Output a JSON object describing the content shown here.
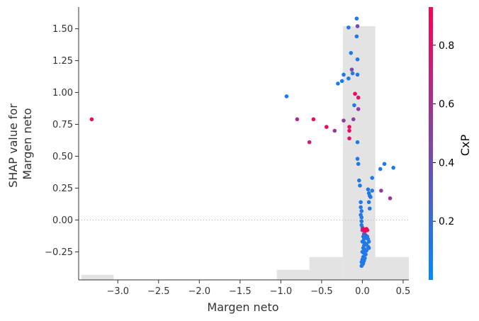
{
  "chart_data": {
    "type": "scatter",
    "xlabel": "Margen neto",
    "ylabel_lines": [
      "SHAP value for",
      "Margen neto"
    ],
    "xlim": [
      -3.48,
      0.57
    ],
    "ylim": [
      -0.47,
      1.67
    ],
    "x_ticks": [
      -3.0,
      -2.5,
      -2.0,
      -1.5,
      -1.0,
      -0.5,
      0.0,
      0.5
    ],
    "x_tick_labels": [
      "−3.0",
      "−2.5",
      "−2.0",
      "−1.5",
      "−1.0",
      "−0.5",
      "0.0",
      "0.5"
    ],
    "y_ticks": [
      -0.25,
      0.0,
      0.25,
      0.5,
      0.75,
      1.0,
      1.25,
      1.5
    ],
    "y_tick_labels": [
      "−0.25",
      "0.00",
      "0.25",
      "0.50",
      "0.75",
      "1.00",
      "1.25",
      "1.50"
    ],
    "zero_line": 0.0,
    "colorbar": {
      "label": "CxP",
      "range": [
        0.0,
        0.93
      ],
      "ticks": [
        0.2,
        0.4,
        0.6,
        0.8
      ],
      "tick_labels": [
        "0.2",
        "0.4",
        "0.6",
        "0.8"
      ],
      "colors": [
        "#008bfb",
        "#ff0052"
      ]
    },
    "histogram": {
      "y_range": [
        -0.47,
        1.52
      ],
      "bins": [
        {
          "x0": -3.45,
          "x1": -3.05,
          "count": 0.02
        },
        {
          "x0": -1.05,
          "x1": -0.65,
          "count": 0.04
        },
        {
          "x0": -0.65,
          "x1": -0.24,
          "count": 0.09
        },
        {
          "x0": -0.24,
          "x1": 0.16,
          "count": 1.0
        },
        {
          "x0": 0.16,
          "x1": 0.57,
          "count": 0.09
        }
      ]
    },
    "points": [
      {
        "x": -3.32,
        "y": 0.79,
        "c": 0.88
      },
      {
        "x": -0.93,
        "y": 0.97,
        "c": 0.1
      },
      {
        "x": -0.8,
        "y": 0.79,
        "c": 0.62
      },
      {
        "x": -0.6,
        "y": 0.79,
        "c": 0.86
      },
      {
        "x": -0.65,
        "y": 0.61,
        "c": 0.7
      },
      {
        "x": -0.44,
        "y": 0.73,
        "c": 0.85
      },
      {
        "x": -0.34,
        "y": 0.7,
        "c": 0.55
      },
      {
        "x": -0.3,
        "y": 1.07,
        "c": 0.12
      },
      {
        "x": -0.25,
        "y": 1.09,
        "c": 0.1
      },
      {
        "x": -0.23,
        "y": 1.14,
        "c": 0.12
      },
      {
        "x": -0.23,
        "y": 0.78,
        "c": 0.5
      },
      {
        "x": -0.17,
        "y": 1.11,
        "c": 0.12
      },
      {
        "x": -0.16,
        "y": 0.73,
        "c": 0.85
      },
      {
        "x": -0.16,
        "y": 0.7,
        "c": 0.82
      },
      {
        "x": -0.16,
        "y": 0.64,
        "c": 0.8
      },
      {
        "x": -0.17,
        "y": 1.51,
        "c": 0.12
      },
      {
        "x": -0.14,
        "y": 1.31,
        "c": 0.12
      },
      {
        "x": -0.13,
        "y": 1.18,
        "c": 0.45
      },
      {
        "x": -0.12,
        "y": 1.15,
        "c": 0.12
      },
      {
        "x": -0.11,
        "y": 0.79,
        "c": 0.5
      },
      {
        "x": -0.1,
        "y": 0.9,
        "c": 0.12
      },
      {
        "x": -0.09,
        "y": 0.99,
        "c": 0.88
      },
      {
        "x": -0.07,
        "y": 1.58,
        "c": 0.12
      },
      {
        "x": -0.06,
        "y": 1.52,
        "c": 0.45
      },
      {
        "x": -0.07,
        "y": 1.44,
        "c": 0.12
      },
      {
        "x": -0.06,
        "y": 1.26,
        "c": 0.12
      },
      {
        "x": -0.06,
        "y": 1.14,
        "c": 0.12
      },
      {
        "x": -0.05,
        "y": 0.96,
        "c": 0.8
      },
      {
        "x": -0.05,
        "y": 0.87,
        "c": 0.55
      },
      {
        "x": -0.06,
        "y": 0.61,
        "c": 0.12
      },
      {
        "x": -0.06,
        "y": 0.48,
        "c": 0.12
      },
      {
        "x": -0.05,
        "y": 0.44,
        "c": 0.12
      },
      {
        "x": -0.04,
        "y": 0.31,
        "c": 0.12
      },
      {
        "x": -0.03,
        "y": 0.27,
        "c": 0.12
      },
      {
        "x": -0.02,
        "y": 0.14,
        "c": 0.12
      },
      {
        "x": -0.02,
        "y": 0.1,
        "c": 0.12
      },
      {
        "x": -0.01,
        "y": 0.07,
        "c": 0.12
      },
      {
        "x": -0.02,
        "y": 0.04,
        "c": 0.12
      },
      {
        "x": -0.01,
        "y": 0.02,
        "c": 0.12
      },
      {
        "x": -0.01,
        "y": -0.01,
        "c": 0.12
      },
      {
        "x": -0.01,
        "y": -0.04,
        "c": 0.12
      },
      {
        "x": 0.0,
        "y": -0.06,
        "c": 0.12
      },
      {
        "x": 0.0,
        "y": -0.08,
        "c": 0.5
      },
      {
        "x": 0.01,
        "y": -0.07,
        "c": 0.88
      },
      {
        "x": 0.02,
        "y": -0.08,
        "c": 0.9
      },
      {
        "x": 0.03,
        "y": -0.09,
        "c": 0.92
      },
      {
        "x": 0.04,
        "y": -0.08,
        "c": 0.9
      },
      {
        "x": 0.05,
        "y": -0.07,
        "c": 0.88
      },
      {
        "x": 0.06,
        "y": -0.08,
        "c": 0.85
      },
      {
        "x": 0.02,
        "y": -0.11,
        "c": 0.4
      },
      {
        "x": 0.04,
        "y": -0.12,
        "c": 0.35
      },
      {
        "x": 0.01,
        "y": -0.13,
        "c": 0.12
      },
      {
        "x": 0.02,
        "y": -0.15,
        "c": 0.12
      },
      {
        "x": 0.04,
        "y": -0.14,
        "c": 0.12
      },
      {
        "x": 0.06,
        "y": -0.13,
        "c": 0.12
      },
      {
        "x": 0.07,
        "y": -0.15,
        "c": 0.12
      },
      {
        "x": 0.08,
        "y": -0.17,
        "c": 0.12
      },
      {
        "x": 0.0,
        "y": -0.17,
        "c": 0.12
      },
      {
        "x": 0.03,
        "y": -0.18,
        "c": 0.12
      },
      {
        "x": 0.05,
        "y": -0.19,
        "c": 0.12
      },
      {
        "x": 0.07,
        "y": -0.21,
        "c": 0.12
      },
      {
        "x": 0.08,
        "y": -0.22,
        "c": 0.12
      },
      {
        "x": 0.01,
        "y": -0.22,
        "c": 0.12
      },
      {
        "x": 0.03,
        "y": -0.23,
        "c": 0.12
      },
      {
        "x": 0.05,
        "y": -0.24,
        "c": 0.12
      },
      {
        "x": 0.0,
        "y": -0.25,
        "c": 0.12
      },
      {
        "x": 0.02,
        "y": -0.26,
        "c": 0.12
      },
      {
        "x": 0.04,
        "y": -0.27,
        "c": 0.12
      },
      {
        "x": 0.01,
        "y": -0.29,
        "c": 0.12
      },
      {
        "x": 0.03,
        "y": -0.3,
        "c": 0.12
      },
      {
        "x": 0.0,
        "y": -0.31,
        "c": 0.12
      },
      {
        "x": 0.02,
        "y": -0.32,
        "c": 0.12
      },
      {
        "x": -0.01,
        "y": -0.33,
        "c": 0.12
      },
      {
        "x": 0.01,
        "y": -0.34,
        "c": 0.12
      },
      {
        "x": 0.0,
        "y": -0.35,
        "c": 0.12
      },
      {
        "x": -0.01,
        "y": -0.36,
        "c": 0.12
      },
      {
        "x": 0.02,
        "y": -0.2,
        "c": 0.12
      },
      {
        "x": 0.07,
        "y": 0.24,
        "c": 0.12
      },
      {
        "x": 0.08,
        "y": 0.21,
        "c": 0.12
      },
      {
        "x": 0.09,
        "y": 0.19,
        "c": 0.12
      },
      {
        "x": 0.1,
        "y": 0.18,
        "c": 0.12
      },
      {
        "x": 0.12,
        "y": 0.23,
        "c": 0.12
      },
      {
        "x": 0.08,
        "y": 0.14,
        "c": 0.12
      },
      {
        "x": 0.09,
        "y": 0.09,
        "c": 0.12
      },
      {
        "x": 0.12,
        "y": 0.33,
        "c": 0.12
      },
      {
        "x": 0.22,
        "y": 0.4,
        "c": 0.12
      },
      {
        "x": 0.27,
        "y": 0.44,
        "c": 0.12
      },
      {
        "x": 0.38,
        "y": 0.41,
        "c": 0.12
      },
      {
        "x": 0.23,
        "y": 0.23,
        "c": 0.55
      },
      {
        "x": 0.34,
        "y": 0.17,
        "c": 0.55
      }
    ]
  }
}
